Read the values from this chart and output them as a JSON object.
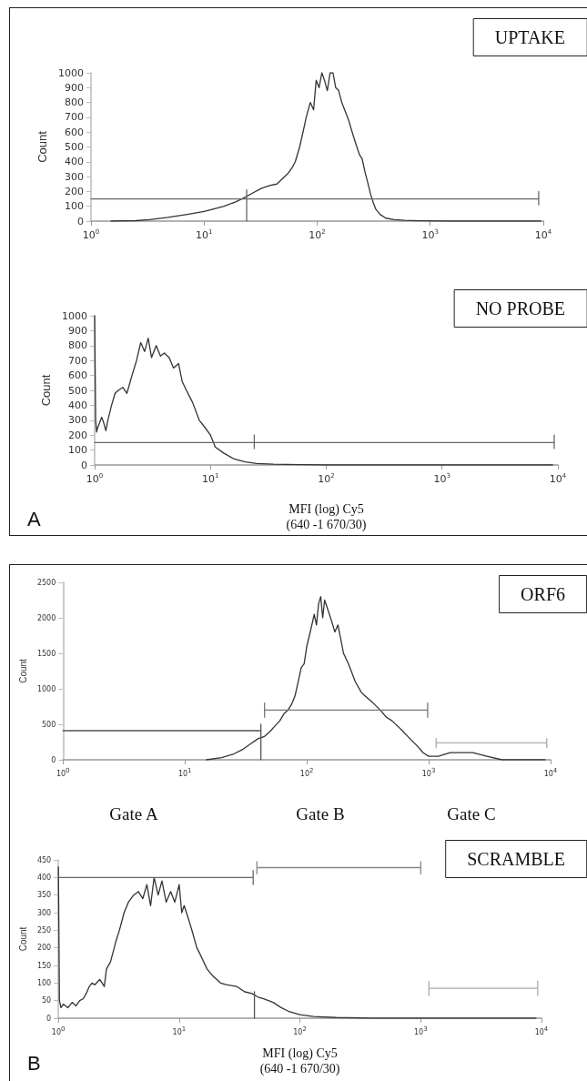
{
  "chart_data": [
    {
      "type": "line",
      "title": "UPTAKE",
      "ylabel": "Count",
      "xlim": [
        1,
        10000
      ],
      "ylim": [
        0,
        1000
      ],
      "log": "x",
      "grid": false,
      "marker": "none",
      "line_style": "solid",
      "xticks": [
        {
          "value": 1,
          "label": "10$^{0}$"
        },
        {
          "value": 10,
          "label": "10$^{1}$"
        },
        {
          "value": 100,
          "label": "10$^{2}$"
        },
        {
          "value": 1000,
          "label": "10$^{3}$"
        },
        {
          "value": 10000,
          "label": "10$^{4}$"
        }
      ],
      "yticks": [
        0,
        100,
        200,
        300,
        400,
        500,
        600,
        700,
        800,
        900,
        1000
      ],
      "series": [
        {
          "color": "#333333",
          "x": [
            1.5,
            2.5,
            3.3,
            4.8,
            7.1,
            10,
            12,
            15,
            19,
            23,
            27,
            32,
            38,
            44,
            50,
            55,
            60,
            64,
            70,
            75,
            80,
            87,
            93,
            98,
            104,
            110,
            116,
            123,
            130,
            138,
            146,
            155,
            165,
            175,
            190,
            204,
            220,
            236,
            250,
            265,
            280,
            297,
            315,
            330,
            360,
            405,
            480,
            590,
            800,
            1480,
            3000,
            9500
          ],
          "values": [
            0,
            3,
            10,
            25,
            45,
            65,
            80,
            100,
            130,
            160,
            190,
            220,
            240,
            250,
            290,
            320,
            360,
            400,
            500,
            600,
            700,
            800,
            750,
            950,
            900,
            1000,
            950,
            880,
            1000,
            1000,
            900,
            880,
            800,
            750,
            680,
            600,
            520,
            450,
            420,
            330,
            260,
            180,
            120,
            80,
            45,
            20,
            10,
            5,
            2,
            0,
            0,
            0
          ]
        },
        {
          "color": "#666666",
          "x": [
            1,
            9100,
            9100,
            9100
          ],
          "values": [
            150,
            150,
            200,
            110
          ]
        },
        {
          "color": "#666666",
          "x": [
            23.8,
            23.8
          ],
          "values": [
            0,
            210
          ]
        }
      ]
    },
    {
      "type": "line",
      "title": "NO PROBE",
      "ylabel": "Count",
      "xlabel": "MFI (log) Cy5\n(640 -1 670/30)",
      "annotations": [
        "A"
      ],
      "xlim": [
        1,
        10000
      ],
      "ylim": [
        0,
        1000
      ],
      "log": "x",
      "grid": false,
      "marker": "none",
      "line_style": "solid",
      "xticks": [
        {
          "value": 1,
          "label": "10$^{0}$"
        },
        {
          "value": 10,
          "label": "10$^{1}$"
        },
        {
          "value": 100,
          "label": "10$^{2}$"
        },
        {
          "value": 1000,
          "label": "10$^{3}$"
        },
        {
          "value": 10000,
          "label": "10$^{4}$"
        }
      ],
      "yticks": [
        0,
        100,
        200,
        300,
        400,
        500,
        600,
        700,
        800,
        900,
        1000
      ],
      "series": [
        {
          "color": "#333333",
          "x": [
            1,
            1.02,
            1.04,
            1.06,
            1.1,
            1.15,
            1.2,
            1.25,
            1.3,
            1.4,
            1.5,
            1.6,
            1.75,
            1.9,
            2.1,
            2.3,
            2.5,
            2.7,
            2.9,
            3.1,
            3.4,
            3.7,
            4.0,
            4.4,
            4.8,
            5.3,
            5.7,
            6.2,
            7,
            8,
            9,
            10,
            11,
            13,
            16,
            20,
            25,
            35,
            60,
            100,
            9000
          ],
          "values": [
            1000,
            300,
            220,
            250,
            280,
            320,
            280,
            230,
            300,
            400,
            480,
            500,
            520,
            480,
            600,
            700,
            820,
            760,
            850,
            720,
            800,
            730,
            750,
            720,
            650,
            680,
            560,
            500,
            420,
            300,
            250,
            200,
            120,
            80,
            40,
            20,
            10,
            5,
            2,
            0,
            0
          ]
        },
        {
          "color": "#666666",
          "x": [
            1,
            9300,
            9300,
            9300
          ],
          "values": [
            150,
            150,
            200,
            110
          ]
        },
        {
          "color": "#666666",
          "x": [
            23.9,
            23.9
          ],
          "values": [
            110,
            200
          ]
        }
      ]
    },
    {
      "type": "line",
      "title": "ORF6",
      "ylabel": "Count",
      "xlim": [
        1,
        10000
      ],
      "ylim": [
        0,
        2500
      ],
      "log": "x",
      "grid": false,
      "marker": "none",
      "line_style": "solid",
      "xticks": [
        {
          "value": 1,
          "label": "10$^{0}$"
        },
        {
          "value": 10,
          "label": "10$^{1}$"
        },
        {
          "value": 100,
          "label": "10$^{2}$"
        },
        {
          "value": 1000,
          "label": "10$^{3}$"
        },
        {
          "value": 10000,
          "label": "10$^{4}$"
        }
      ],
      "yticks": [
        0,
        500,
        1000,
        1500,
        2000,
        2500
      ],
      "series": [
        {
          "color": "#333333",
          "x": [
            15,
            20,
            25,
            30,
            35,
            40,
            45,
            50,
            55,
            60,
            65,
            70,
            75,
            80,
            85,
            90,
            95,
            100,
            105,
            110,
            115,
            120,
            125,
            130,
            135,
            140,
            150,
            160,
            170,
            180,
            190,
            200,
            220,
            250,
            280,
            300,
            350,
            400,
            450,
            500,
            600,
            700,
            800,
            900,
            1000,
            1200,
            1500,
            2000,
            2300,
            3000,
            4000,
            5000,
            9000
          ],
          "values": [
            0,
            30,
            80,
            150,
            230,
            300,
            330,
            400,
            480,
            550,
            650,
            700,
            780,
            900,
            1100,
            1300,
            1350,
            1600,
            1750,
            1900,
            2050,
            1900,
            2200,
            2300,
            2000,
            2250,
            2100,
            1950,
            1800,
            1900,
            1700,
            1500,
            1350,
            1100,
            950,
            900,
            800,
            700,
            600,
            550,
            420,
            300,
            200,
            100,
            50,
            50,
            100,
            100,
            100,
            50,
            0,
            0,
            0
          ]
        },
        {
          "color": "#555555",
          "x": [
            1,
            42
          ],
          "values": [
            410,
            410
          ]
        },
        {
          "color": "#555555",
          "x": [
            42,
            42
          ],
          "values": [
            0,
            500
          ]
        },
        {
          "color": "#777777",
          "x": [
            45,
            45,
            45,
            980,
            980,
            980
          ],
          "values": [
            800,
            600,
            700,
            700,
            800,
            600
          ]
        },
        {
          "color": "#aaaaaa",
          "x": [
            1150,
            1150,
            1150,
            9300,
            9300,
            9300
          ],
          "values": [
            300,
            170,
            240,
            240,
            300,
            170
          ]
        }
      ]
    },
    {
      "type": "line",
      "title": "SCRAMBLE",
      "ylabel": "Count",
      "xlabel": "MFI (log) Cy5\n(640 -1 670/30)",
      "annotations": [
        "Gate A",
        "Gate B",
        "Gate C",
        "B"
      ],
      "xlim": [
        1,
        10000
      ],
      "ylim": [
        0,
        450
      ],
      "log": "x",
      "grid": false,
      "marker": "none",
      "line_style": "solid",
      "xticks": [
        {
          "value": 1,
          "label": "10$^{0}$"
        },
        {
          "value": 10,
          "label": "10$^{1}$"
        },
        {
          "value": 100,
          "label": "10$^{2}$"
        },
        {
          "value": 1000,
          "label": "10$^{3}$"
        },
        {
          "value": 10000,
          "label": "10$^{4}$"
        }
      ],
      "yticks": [
        0,
        50,
        100,
        150,
        200,
        250,
        300,
        350,
        400,
        450
      ],
      "series": [
        {
          "color": "#333333",
          "x": [
            1,
            1.02,
            1.05,
            1.1,
            1.2,
            1.3,
            1.4,
            1.5,
            1.6,
            1.7,
            1.8,
            1.9,
            2.0,
            2.2,
            2.4,
            2.5,
            2.7,
            2.9,
            3.0,
            3.2,
            3.5,
            3.8,
            4.2,
            4.6,
            5.0,
            5.4,
            5.8,
            6.2,
            6.7,
            7.2,
            7.8,
            8.5,
            9.2,
            10,
            10.5,
            11,
            12,
            13,
            14,
            15,
            17,
            19,
            22,
            25,
            30,
            35,
            40,
            45,
            50,
            60,
            70,
            80,
            100,
            130,
            200,
            400,
            9000
          ],
          "values": [
            430,
            50,
            30,
            40,
            30,
            45,
            35,
            50,
            55,
            70,
            90,
            100,
            95,
            110,
            90,
            140,
            160,
            200,
            220,
            250,
            300,
            330,
            350,
            360,
            340,
            380,
            320,
            400,
            350,
            390,
            330,
            360,
            330,
            380,
            300,
            320,
            280,
            240,
            200,
            180,
            140,
            120,
            100,
            95,
            90,
            75,
            70,
            60,
            55,
            45,
            30,
            20,
            10,
            5,
            2,
            0,
            0
          ]
        },
        {
          "color": "#666666",
          "x": [
            1,
            41,
            41,
            41
          ],
          "values": [
            400,
            400,
            420,
            380
          ]
        },
        {
          "color": "#555555",
          "x": [
            42,
            42
          ],
          "values": [
            0,
            75
          ]
        },
        {
          "color": "#888888",
          "x": [
            44,
            44,
            44,
            1000,
            1000,
            1000
          ],
          "values": [
            445,
            410,
            428,
            428,
            445,
            410
          ]
        },
        {
          "color": "#aaaaaa",
          "x": [
            1170,
            1170,
            1170,
            9300,
            9300,
            9300
          ],
          "values": [
            105,
            65,
            85,
            85,
            105,
            65
          ]
        }
      ]
    }
  ]
}
